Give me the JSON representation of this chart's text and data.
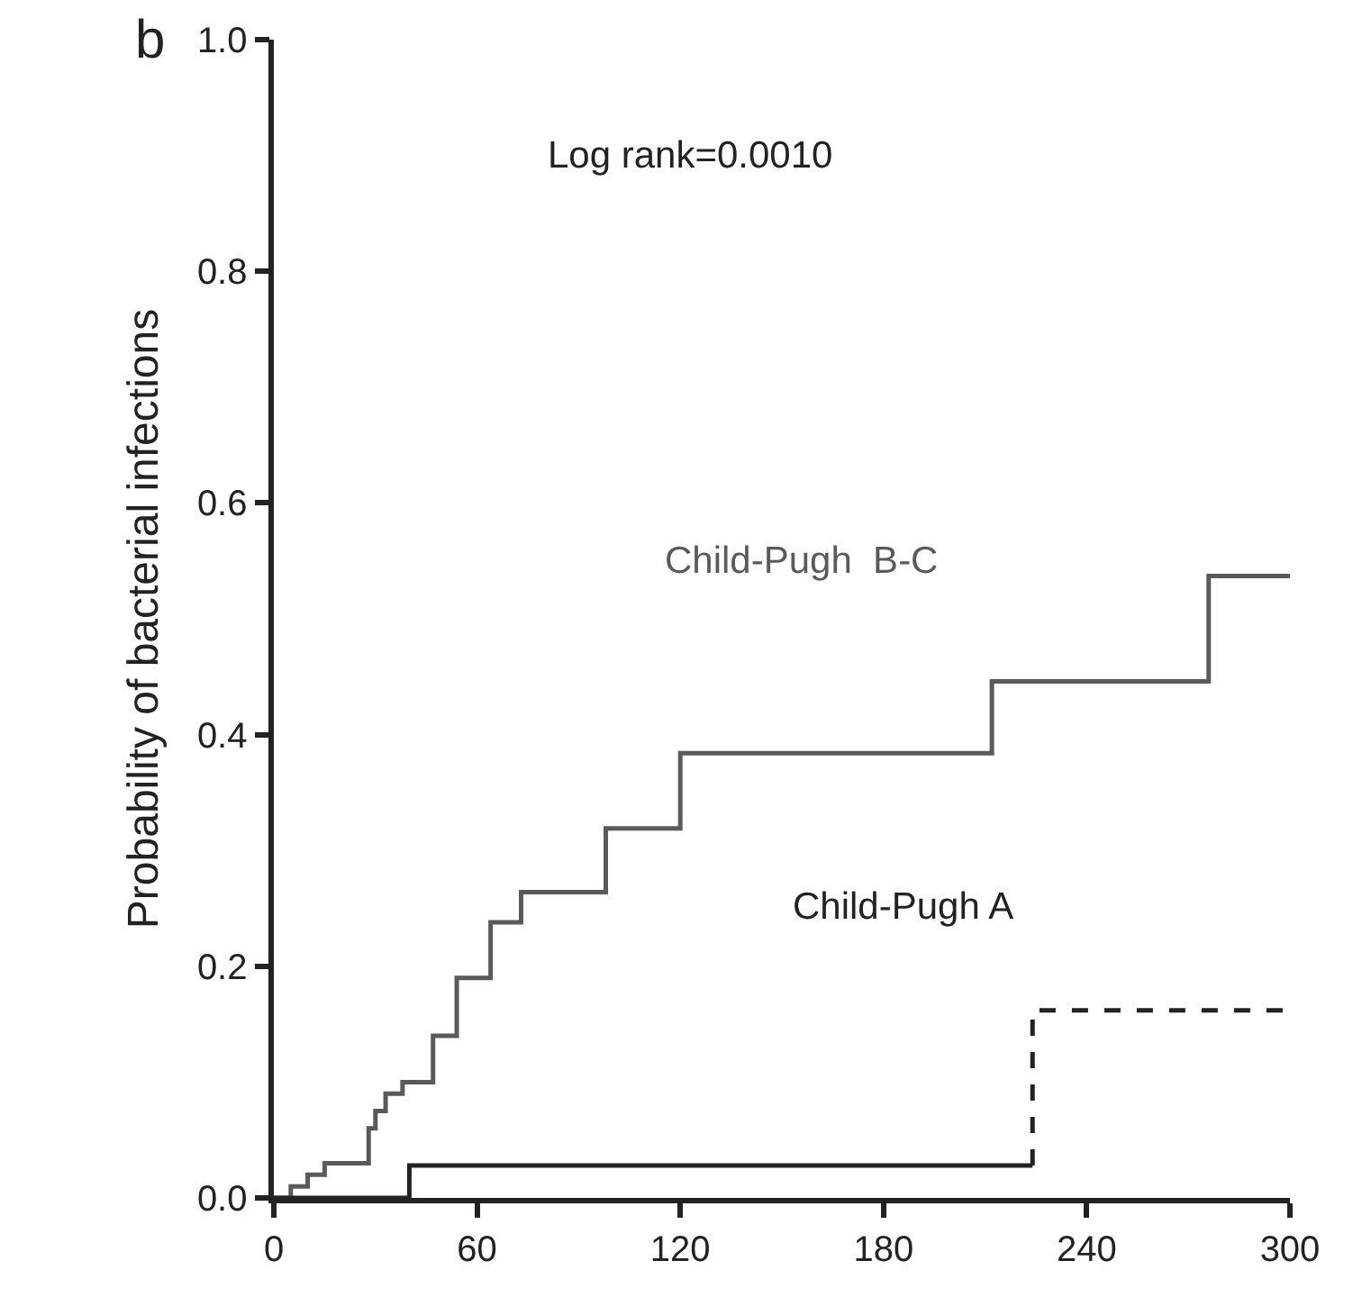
{
  "chart_data": {
    "type": "step",
    "ylabel": "Probability of bacterial infections",
    "annotations": [
      "b",
      "Log rank=0.0010"
    ],
    "series": [
      {
        "name": "Child-Pugh  B-C",
        "color": "#5a5a5a",
        "x": [
          0,
          5,
          10,
          15,
          28,
          30,
          33,
          38,
          47,
          54,
          64,
          73,
          98,
          120,
          212,
          276,
          300
        ],
        "values": [
          0,
          0.01,
          0.02,
          0.03,
          0.06,
          0.075,
          0.09,
          0.1,
          0.14,
          0.19,
          0.238,
          0.264,
          0.319,
          0.384,
          0.446,
          0.537,
          0.537
        ]
      },
      {
        "name": "Child-Pugh A",
        "color": "#222222",
        "x": [
          0,
          40,
          224
        ],
        "values": [
          0,
          0.028,
          0.028
        ]
      },
      {
        "color": "#222222",
        "line_style": "dashed",
        "x": [
          224,
          224,
          300
        ],
        "values": [
          0.028,
          0.162,
          0.162
        ]
      }
    ],
    "xlim": [
      0,
      300
    ],
    "xticks": [
      0,
      60,
      120,
      180,
      240,
      300
    ],
    "ylim": [
      0,
      1.0
    ],
    "yticks": [
      {
        "value": 0,
        "label": "0.0"
      },
      {
        "value": 0.2,
        "label": "0.2"
      },
      {
        "value": 0.4,
        "label": "0.4"
      },
      {
        "value": 0.6,
        "label": "0.6"
      },
      {
        "value": 0.8,
        "label": "0.8"
      },
      {
        "value": 1.0,
        "label": "1.0"
      }
    ],
    "grid": false,
    "legend": false,
    "marker": "none",
    "line_style": "solid"
  }
}
